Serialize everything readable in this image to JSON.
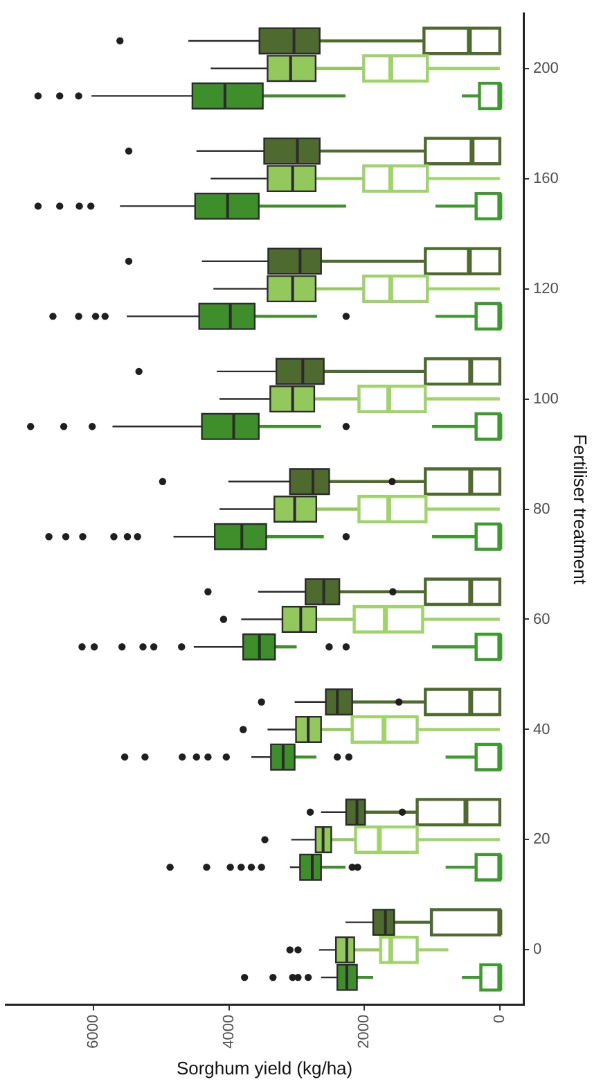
{
  "chart_data": {
    "type": "box",
    "orientation": "horizontal",
    "xlabel": "Sorghum yield (kg/ha)",
    "ylabel": "Fertiliser treatment",
    "categories": [
      "200",
      "160",
      "120",
      "100",
      "80",
      "60",
      "40",
      "20",
      "0"
    ],
    "xlim": [
      7300,
      -350
    ],
    "xticks": [
      0,
      2000,
      4000,
      6000
    ],
    "series": [
      {
        "color": "#4f6a2f",
        "boxes": [
          {
            "low": 1120,
            "q1": 2660,
            "median": 3040,
            "q3": 3550,
            "high": 4600,
            "outliers": [
              5610
            ]
          },
          {
            "low": 1100,
            "q1": 2660,
            "median": 2990,
            "q3": 3480,
            "high": 4480,
            "outliers": [
              5480
            ]
          },
          {
            "low": 1100,
            "q1": 2640,
            "median": 2950,
            "q3": 3420,
            "high": 4400,
            "outliers": [
              5480
            ]
          },
          {
            "low": 1100,
            "q1": 2600,
            "median": 2910,
            "q3": 3300,
            "high": 4180,
            "outliers": [
              5330
            ]
          },
          {
            "low": 1100,
            "q1": 2520,
            "median": 2760,
            "q3": 3100,
            "high": 4010,
            "outliers": [
              1590,
              4980
            ]
          },
          {
            "low": 1100,
            "q1": 2370,
            "median": 2600,
            "q3": 2870,
            "high": 3570,
            "outliers": [
              1580,
              4310
            ]
          },
          {
            "low": 1100,
            "q1": 2180,
            "median": 2400,
            "q3": 2570,
            "high": 3030,
            "outliers": [
              1490,
              3520
            ]
          },
          {
            "low": 1220,
            "q1": 1990,
            "median": 2110,
            "q3": 2270,
            "high": 2640,
            "outliers": [
              1440,
              2800
            ]
          },
          {
            "low": 1010,
            "q1": 1560,
            "median": 1690,
            "q3": 1870,
            "high": 2280
          }
        ]
      },
      {
        "color": "#4f6a2f",
        "boxes": [
          {
            "low": 0,
            "q1": 0,
            "median": 450,
            "q3": 1120,
            "high": 1120
          },
          {
            "low": 0,
            "q1": 0,
            "median": 410,
            "q3": 1100,
            "high": 1100
          },
          {
            "low": 0,
            "q1": 0,
            "median": 450,
            "q3": 1100,
            "high": 1100
          },
          {
            "low": 0,
            "q1": 0,
            "median": 430,
            "q3": 1100,
            "high": 1100
          },
          {
            "low": 0,
            "q1": 0,
            "median": 430,
            "q3": 1100,
            "high": 1100
          },
          {
            "low": 0,
            "q1": 0,
            "median": 430,
            "q3": 1100,
            "high": 1100
          },
          {
            "low": 0,
            "q1": 0,
            "median": 430,
            "q3": 1100,
            "high": 1100
          },
          {
            "low": 0,
            "q1": 0,
            "median": 500,
            "q3": 1220,
            "high": 1220
          },
          {
            "low": 0,
            "q1": 0,
            "median": 0,
            "q3": 1010,
            "high": 1010
          }
        ]
      },
      {
        "color": "#93c85c",
        "boxes": [
          {
            "low": 2010,
            "q1": 2720,
            "median": 3090,
            "q3": 3430,
            "high": 4270
          },
          {
            "low": 2010,
            "q1": 2720,
            "median": 3060,
            "q3": 3430,
            "high": 4270
          },
          {
            "low": 2010,
            "q1": 2720,
            "median": 3060,
            "q3": 3430,
            "high": 4230
          },
          {
            "low": 2080,
            "q1": 2740,
            "median": 3060,
            "q3": 3390,
            "high": 4140
          },
          {
            "low": 2080,
            "q1": 2710,
            "median": 3030,
            "q3": 3330,
            "high": 4140
          },
          {
            "low": 2150,
            "q1": 2710,
            "median": 2940,
            "q3": 3210,
            "high": 3820,
            "outliers": [
              4080
            ]
          },
          {
            "low": 2180,
            "q1": 2640,
            "median": 2830,
            "q3": 3010,
            "high": 3430,
            "outliers": [
              3790
            ]
          },
          {
            "low": 2130,
            "q1": 2490,
            "median": 2610,
            "q3": 2720,
            "high": 3080,
            "outliers": [
              3470
            ]
          },
          {
            "low": 1760,
            "q1": 2150,
            "median": 2260,
            "q3": 2420,
            "high": 2670,
            "outliers": [
              2980,
              3100
            ]
          }
        ]
      },
      {
        "color": "#9fd46a",
        "boxes": [
          {
            "low": 0,
            "q1": 1070,
            "median": 1610,
            "q3": 2010,
            "high": 2010
          },
          {
            "low": 0,
            "q1": 1070,
            "median": 1610,
            "q3": 2010,
            "high": 2010
          },
          {
            "low": 0,
            "q1": 1070,
            "median": 1610,
            "q3": 2010,
            "high": 2010
          },
          {
            "low": 0,
            "q1": 1100,
            "median": 1640,
            "q3": 2080,
            "high": 2080
          },
          {
            "low": 0,
            "q1": 1090,
            "median": 1640,
            "q3": 2080,
            "high": 2080
          },
          {
            "low": 0,
            "q1": 1140,
            "median": 1690,
            "q3": 2150,
            "high": 2150
          },
          {
            "low": 0,
            "q1": 1220,
            "median": 1710,
            "q3": 2180,
            "high": 2180
          },
          {
            "low": 0,
            "q1": 1220,
            "median": 1780,
            "q3": 2130,
            "high": 2130
          },
          {
            "low": 760,
            "q1": 1220,
            "median": 1610,
            "q3": 1760,
            "high": 1760
          }
        ]
      },
      {
        "color": "#3e8f2b",
        "boxes": [
          {
            "low": 2280,
            "q1": 3500,
            "median": 4060,
            "q3": 4540,
            "high": 6030,
            "outliers": [
              6220,
              6500,
              6820
            ]
          },
          {
            "low": 2270,
            "q1": 3560,
            "median": 4020,
            "q3": 4500,
            "high": 5610,
            "outliers": [
              6040,
              6210,
              6500,
              6820
            ]
          },
          {
            "low": 2700,
            "q1": 3620,
            "median": 3980,
            "q3": 4440,
            "high": 5510,
            "outliers": [
              2270,
              5830,
              5970,
              6220,
              6600
            ]
          },
          {
            "low": 2640,
            "q1": 3560,
            "median": 3930,
            "q3": 4400,
            "high": 5720,
            "outliers": [
              2270,
              6020,
              6440,
              6930
            ]
          },
          {
            "low": 2600,
            "q1": 3450,
            "median": 3810,
            "q3": 4210,
            "high": 4820,
            "outliers": [
              2270,
              5350,
              5500,
              5700,
              6160,
              6410,
              6660
            ]
          },
          {
            "low": 3000,
            "q1": 3320,
            "median": 3550,
            "q3": 3790,
            "high": 4520,
            "outliers": [
              2270,
              2520,
              4700,
              5110,
              5270,
              5580,
              5990,
              6170
            ]
          },
          {
            "low": 2710,
            "q1": 3030,
            "median": 3200,
            "q3": 3380,
            "high": 3670,
            "outliers": [
              2230,
              2400,
              4040,
              4310,
              4480,
              4690,
              5240,
              5540
            ]
          },
          {
            "low": 2280,
            "q1": 2640,
            "median": 2770,
            "q3": 2950,
            "high": 3100,
            "outliers": [
              2100,
              2180,
              3520,
              3670,
              3820,
              3980,
              4330,
              4870
            ]
          },
          {
            "low": 1870,
            "q1": 2110,
            "median": 2260,
            "q3": 2400,
            "high": 2640,
            "outliers": [
              2830,
              2980,
              3060,
              3350,
              3770
            ]
          }
        ]
      },
      {
        "color": "#3c9a2e",
        "boxes": [
          {
            "low": 0,
            "q1": 0,
            "median": 0,
            "q3": 300,
            "high": 560
          },
          {
            "low": 0,
            "q1": 0,
            "median": 0,
            "q3": 350,
            "high": 950
          },
          {
            "low": 0,
            "q1": 0,
            "median": 0,
            "q3": 350,
            "high": 950
          },
          {
            "low": 0,
            "q1": 0,
            "median": 0,
            "q3": 350,
            "high": 1000
          },
          {
            "low": 0,
            "q1": 0,
            "median": 0,
            "q3": 350,
            "high": 1000
          },
          {
            "low": 0,
            "q1": 0,
            "median": 0,
            "q3": 350,
            "high": 1000
          },
          {
            "low": 0,
            "q1": 0,
            "median": 0,
            "q3": 350,
            "high": 800
          },
          {
            "low": 0,
            "q1": 0,
            "median": 0,
            "q3": 350,
            "high": 800
          },
          {
            "low": 0,
            "q1": 0,
            "median": 0,
            "q3": 280,
            "high": 560
          }
        ]
      }
    ]
  }
}
